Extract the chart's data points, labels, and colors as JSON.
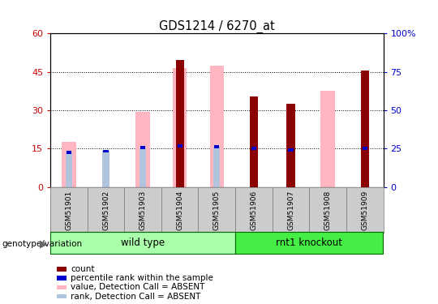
{
  "title": "GDS1214 / 6270_at",
  "samples": [
    "GSM51901",
    "GSM51902",
    "GSM51903",
    "GSM51904",
    "GSM51905",
    "GSM51906",
    "GSM51907",
    "GSM51908",
    "GSM51909"
  ],
  "count_values": [
    null,
    null,
    null,
    49.5,
    null,
    35.5,
    32.5,
    null,
    45.5
  ],
  "percentile_rank": [
    13.5,
    14.0,
    15.5,
    16.0,
    15.8,
    15.0,
    14.5,
    null,
    15.2
  ],
  "value_absent": [
    17.5,
    null,
    29.5,
    46.5,
    47.5,
    null,
    null,
    37.5,
    null
  ],
  "rank_absent": [
    13.5,
    14.0,
    15.5,
    null,
    15.8,
    null,
    null,
    null,
    null
  ],
  "left_ylim": [
    0,
    60
  ],
  "right_ylim": [
    0,
    100
  ],
  "left_yticks": [
    0,
    15,
    30,
    45,
    60
  ],
  "right_yticks": [
    0,
    25,
    50,
    75,
    100
  ],
  "left_yticklabels": [
    "0",
    "15",
    "30",
    "45",
    "60"
  ],
  "right_yticklabels": [
    "0",
    "25",
    "50",
    "75",
    "100%"
  ],
  "dotted_lines": [
    15,
    30,
    45
  ],
  "groups": [
    {
      "label": "wild type",
      "start": 0,
      "end": 5,
      "color": "#aaffaa"
    },
    {
      "label": "rnt1 knockout",
      "start": 5,
      "end": 9,
      "color": "#44ee44"
    }
  ],
  "group_label": "genotype/variation",
  "legend_items": [
    {
      "label": "count",
      "color": "#8b0000"
    },
    {
      "label": "percentile rank within the sample",
      "color": "#0000cc"
    },
    {
      "label": "value, Detection Call = ABSENT",
      "color": "#ffb6c1"
    },
    {
      "label": "rank, Detection Call = ABSENT",
      "color": "#b0c4de"
    }
  ],
  "count_color": "#8b0000",
  "percentile_color": "#0000cc",
  "absent_value_color": "#ffb6c1",
  "absent_rank_color": "#b0c4de",
  "left_tick_color": "#cc0000",
  "right_tick_color": "#0000cc"
}
